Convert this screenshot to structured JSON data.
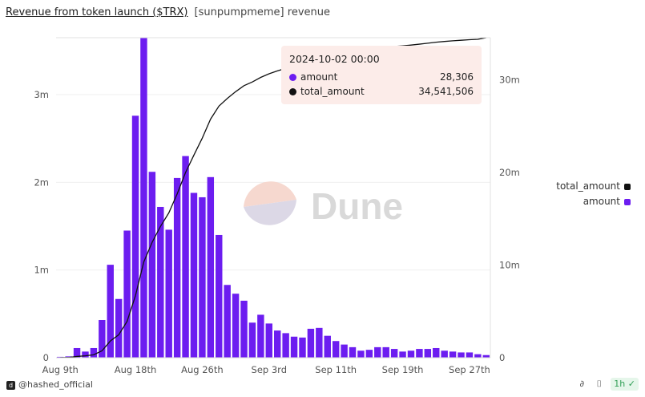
{
  "header": {
    "title": "Revenue from token launch ($TRX)",
    "subtitle": "[sunpumpmeme] revenue"
  },
  "tooltip": {
    "date": "2024-10-02 00:00",
    "rows": [
      {
        "label": "amount",
        "value": "28,306",
        "color": "#6c1df0"
      },
      {
        "label": "total_amount",
        "value": "34,541,506",
        "color": "#111111"
      }
    ]
  },
  "legend": [
    {
      "label": "total_amount",
      "color": "#111111"
    },
    {
      "label": "amount",
      "color": "#6c1df0"
    }
  ],
  "watermark": "Dune",
  "footer": {
    "author": "@hashed_official",
    "refresh": "1h"
  },
  "chart_data": {
    "type": "bar+line",
    "x_ticks": [
      "Aug 9th",
      "Aug 18th",
      "Aug 26th",
      "Sep 3rd",
      "Sep 11th",
      "Sep 19th",
      "Sep 27th"
    ],
    "y_left_ticks": [
      "0",
      "1m",
      "2m",
      "3m"
    ],
    "y_right_ticks": [
      "0",
      "10m",
      "20m",
      "30m"
    ],
    "y_left_range": [
      0,
      3650000
    ],
    "y_right_range": [
      0,
      34541506
    ],
    "series": [
      {
        "name": "amount",
        "axis": "left",
        "type": "bar",
        "color": "#6c1df0",
        "values": [
          10000,
          15000,
          110000,
          70000,
          110000,
          430000,
          1060000,
          670000,
          1450000,
          2760000,
          3650000,
          2120000,
          1720000,
          1460000,
          2050000,
          2300000,
          1880000,
          1830000,
          2060000,
          1400000,
          830000,
          730000,
          650000,
          400000,
          490000,
          390000,
          310000,
          280000,
          240000,
          230000,
          330000,
          340000,
          250000,
          190000,
          150000,
          120000,
          80000,
          90000,
          120000,
          120000,
          100000,
          70000,
          80000,
          100000,
          100000,
          110000,
          80000,
          70000,
          60000,
          60000,
          40000,
          30000
        ]
      },
      {
        "name": "total_amount",
        "axis": "right",
        "type": "line",
        "color": "#111111",
        "values": [
          10000,
          25000,
          135000,
          205000,
          315000,
          745000,
          1805000,
          2475000,
          3925000,
          6685000,
          10335000,
          12455000,
          14175000,
          15635000,
          17685000,
          19985000,
          21865000,
          23695000,
          25755000,
          27155000,
          27985000,
          28715000,
          29365000,
          29765000,
          30255000,
          30645000,
          30955000,
          31235000,
          31475000,
          31705000,
          32035000,
          32375000,
          32625000,
          32815000,
          32965000,
          33085000,
          33165000,
          33255000,
          33375000,
          33495000,
          33595000,
          33665000,
          33745000,
          33845000,
          33945000,
          34055000,
          34135000,
          34205000,
          34265000,
          34325000,
          34365000,
          34541506
        ]
      }
    ]
  }
}
